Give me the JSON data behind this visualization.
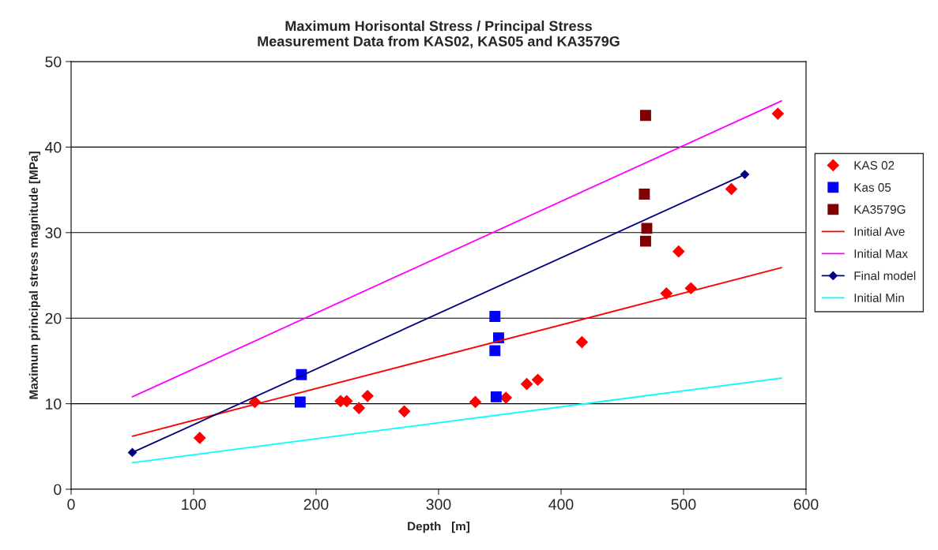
{
  "chart_data": {
    "type": "scatter",
    "title": "Maximum Horisontal Stress / Principal Stress\nMeasurement Data from KAS02, KAS05 and KA3579G",
    "xlabel": "Depth   [m]",
    "ylabel": "Maximum principal stress magnitude [MPa]",
    "xlim": [
      0,
      600
    ],
    "xticks": [
      0,
      100,
      200,
      300,
      400,
      500,
      600
    ],
    "ylim": [
      0,
      50
    ],
    "yticks": [
      0,
      10,
      20,
      30,
      40,
      50
    ],
    "grid": "y",
    "legend": "right",
    "series": [
      {
        "name": "KAS 02",
        "marker": "diamond",
        "color": "#ff0000",
        "x": [
          105,
          150,
          220,
          225,
          235,
          242,
          272,
          330,
          355,
          372,
          381,
          417,
          486,
          496,
          506,
          539,
          577
        ],
        "values": [
          6.0,
          10.2,
          10.3,
          10.3,
          9.5,
          10.9,
          9.1,
          10.2,
          10.7,
          12.3,
          12.8,
          17.2,
          22.9,
          27.8,
          23.5,
          35.1,
          43.9
        ]
      },
      {
        "name": "Kas 05",
        "marker": "square",
        "color": "#0000ff",
        "x": [
          188,
          187,
          346,
          349,
          346,
          347
        ],
        "values": [
          13.4,
          10.2,
          20.2,
          17.7,
          16.2,
          10.8
        ]
      },
      {
        "name": "KA3579G",
        "marker": "square",
        "color": "#800000",
        "x": [
          469,
          468,
          470,
          469
        ],
        "values": [
          43.7,
          34.5,
          30.5,
          29.0
        ]
      },
      {
        "name": "Initial Ave",
        "type": "line",
        "marker": "none",
        "color": "#ff0000",
        "x": [
          50,
          580
        ],
        "values": [
          6.2,
          25.9
        ]
      },
      {
        "name": "Initial Max",
        "type": "line",
        "marker": "none",
        "color": "#ff00ff",
        "x": [
          50,
          580
        ],
        "values": [
          10.8,
          45.4
        ]
      },
      {
        "name": "Final model",
        "type": "line",
        "marker": "diamond",
        "color": "#000080",
        "x": [
          50,
          550
        ],
        "values": [
          4.3,
          36.8
        ]
      },
      {
        "name": "Initial Min",
        "type": "line",
        "marker": "none",
        "color": "#00ffff",
        "x": [
          50,
          580
        ],
        "values": [
          3.1,
          13.0
        ]
      }
    ]
  }
}
